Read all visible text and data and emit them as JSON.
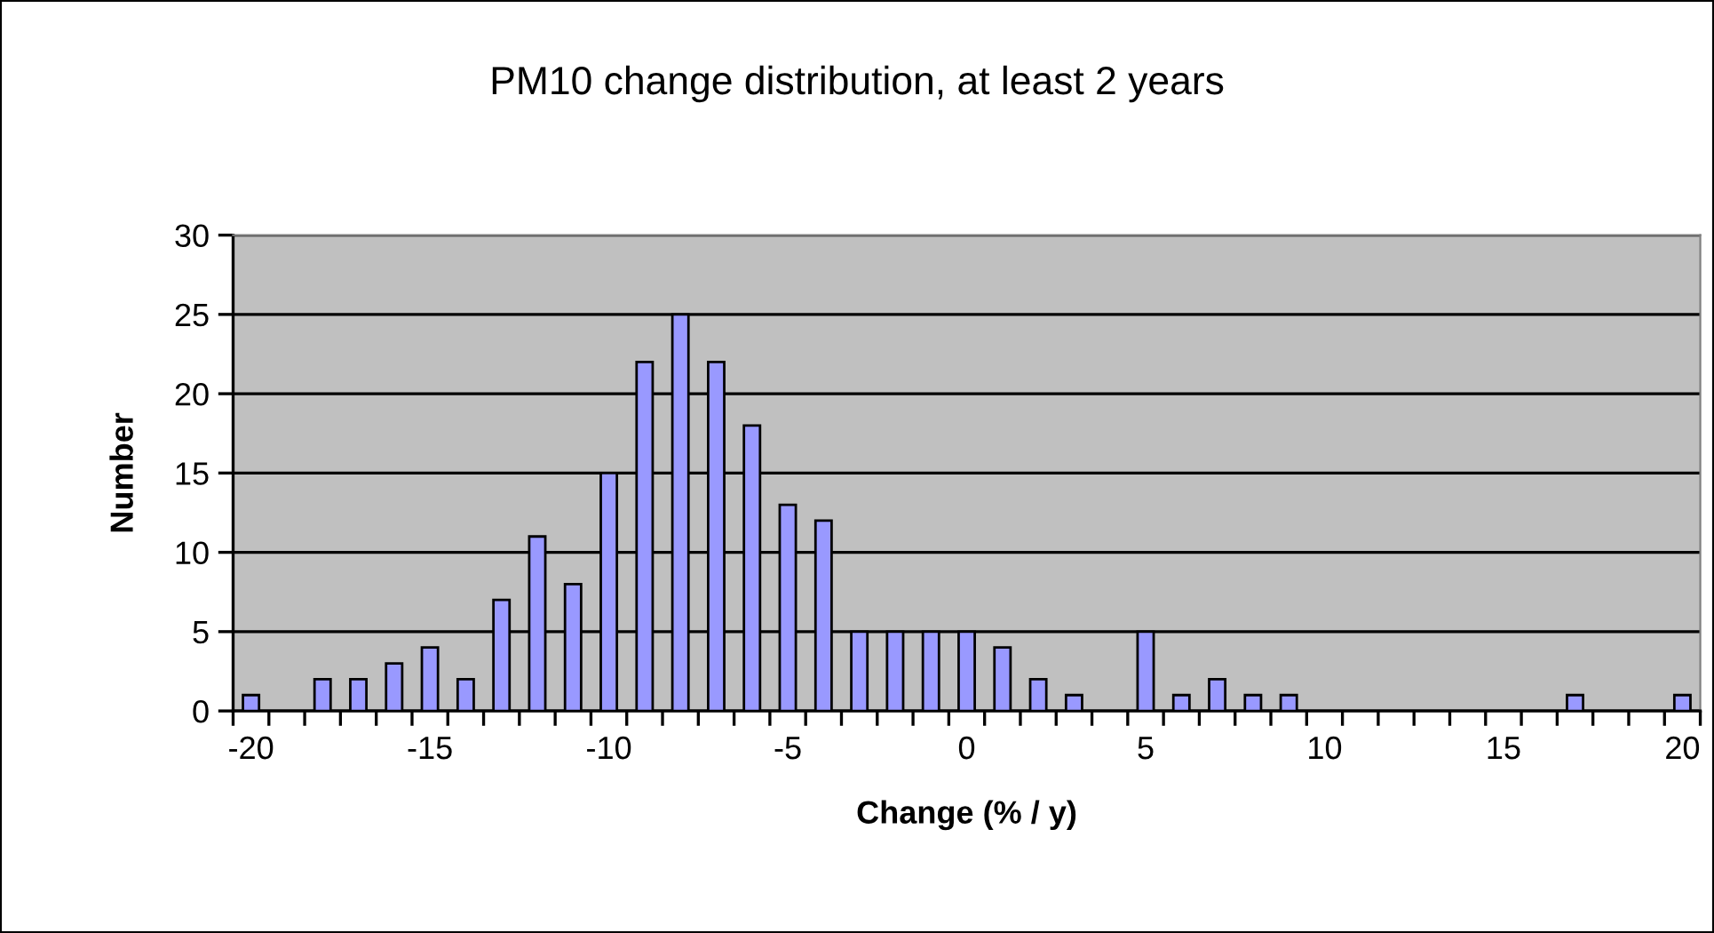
{
  "chart_data": {
    "type": "bar",
    "title": "PM10 change distribution, at least 2 years",
    "xlabel": "Change (% / y)",
    "ylabel": "Number",
    "categories": [
      "-20",
      null,
      null,
      null,
      null,
      "-15",
      null,
      null,
      null,
      null,
      "-10",
      null,
      null,
      null,
      null,
      "-5",
      null,
      null,
      null,
      null,
      "0",
      null,
      null,
      null,
      null,
      "5",
      null,
      null,
      null,
      null,
      "10",
      null,
      null,
      null,
      null,
      "15",
      null,
      null,
      null,
      null,
      "20"
    ],
    "values": [
      1,
      0,
      2,
      2,
      3,
      4,
      2,
      7,
      11,
      8,
      15,
      22,
      25,
      22,
      18,
      13,
      12,
      5,
      5,
      5,
      5,
      4,
      2,
      1,
      0,
      5,
      1,
      2,
      1,
      1,
      0,
      0,
      0,
      0,
      0,
      0,
      0,
      1,
      0,
      0,
      1
    ],
    "color": "#9999ff",
    "ylim": [
      0,
      30
    ],
    "yticks": [
      0,
      5,
      10,
      15,
      20,
      25,
      30
    ],
    "grid": "y",
    "legend": false
  }
}
